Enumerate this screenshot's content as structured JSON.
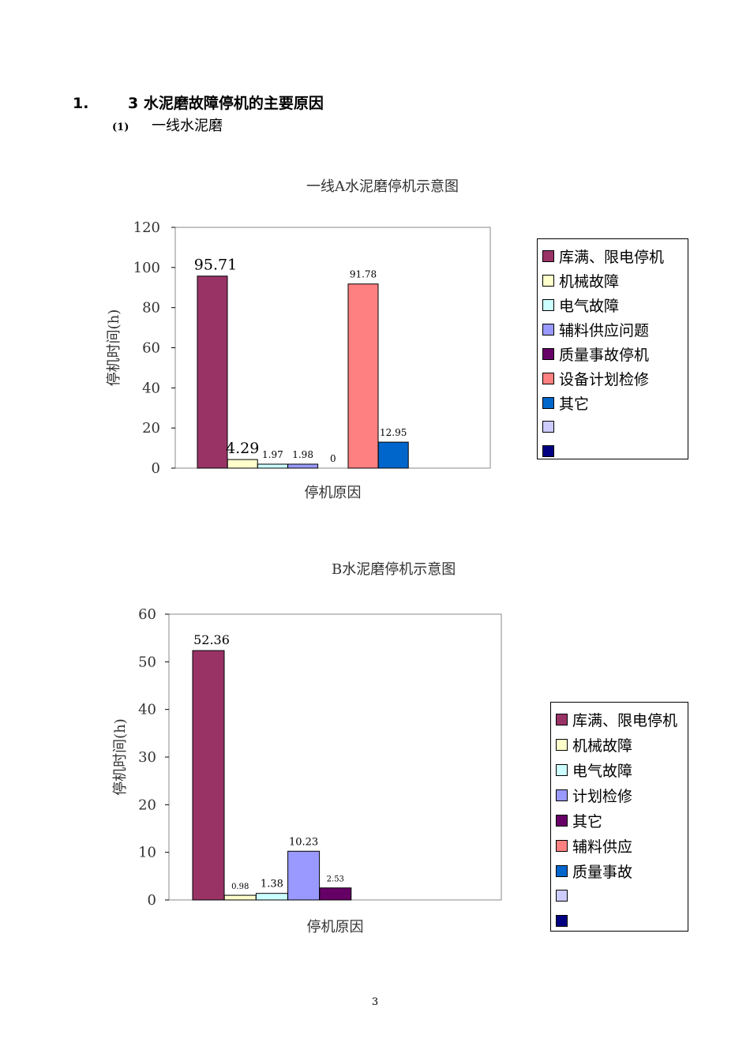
{
  "heading": {
    "number": "1.",
    "text": "3 水泥磨故障停机的主要原因"
  },
  "subheading": {
    "number": "(1)",
    "text": "一线水泥磨"
  },
  "page_number": "3",
  "chart_data": [
    {
      "type": "bar",
      "title": "一线A水泥磨停机示意图",
      "xlabel": "停机原因",
      "ylabel": "停机时间(h)",
      "ylim": [
        0,
        120
      ],
      "yticks": [
        "0",
        "20",
        "40",
        "60",
        "80",
        "100",
        "120"
      ],
      "grid": false,
      "legend_position": "right",
      "series": [
        {
          "name": "库满、限电停机",
          "value": 95.71,
          "label": "95.71",
          "color": "#993366"
        },
        {
          "name": "机械故障",
          "value": 4.29,
          "label": "4.29",
          "color": "#FFFFCC"
        },
        {
          "name": "电气故障",
          "value": 1.97,
          "label": "1.97",
          "color": "#CCFFFF"
        },
        {
          "name": "辅料供应问题",
          "value": 1.98,
          "label": "1.98",
          "color": "#9999FF"
        },
        {
          "name": "质量事故停机",
          "value": 0,
          "label": "0",
          "color": "#660066"
        },
        {
          "name": "设备计划检修",
          "value": 91.78,
          "label": "91.78",
          "color": "#FF8080"
        },
        {
          "name": "其它",
          "value": 12.95,
          "label": "12.95",
          "color": "#0066CC"
        },
        {
          "name": "",
          "value": null,
          "label": "",
          "color": "#CCCCFF"
        },
        {
          "name": "",
          "value": null,
          "label": "",
          "color": "#000080"
        }
      ]
    },
    {
      "type": "bar",
      "title": "B水泥磨停机示意图",
      "xlabel": "停机原因",
      "ylabel": "停机时间(h)",
      "ylim": [
        0,
        60
      ],
      "yticks": [
        "0",
        "10",
        "20",
        "30",
        "40",
        "50",
        "60"
      ],
      "grid": false,
      "legend_position": "right",
      "series": [
        {
          "name": "库满、限电停机",
          "value": 52.36,
          "label": "52.36",
          "color": "#993366"
        },
        {
          "name": "机械故障",
          "value": 0.98,
          "label": "0.98",
          "color": "#FFFFCC"
        },
        {
          "name": "电气故障",
          "value": 1.38,
          "label": "1.38",
          "color": "#CCFFFF"
        },
        {
          "name": "计划检修",
          "value": 10.23,
          "label": "10.23",
          "color": "#9999FF"
        },
        {
          "name": "其它",
          "value": 2.53,
          "label": "2.53",
          "color": "#660066"
        },
        {
          "name": "辅料供应",
          "value": null,
          "label": "",
          "color": "#FF8080"
        },
        {
          "name": "质量事故",
          "value": null,
          "label": "",
          "color": "#0066CC"
        },
        {
          "name": "",
          "value": null,
          "label": "",
          "color": "#CCCCFF"
        },
        {
          "name": "",
          "value": null,
          "label": "",
          "color": "#000080"
        }
      ]
    }
  ]
}
